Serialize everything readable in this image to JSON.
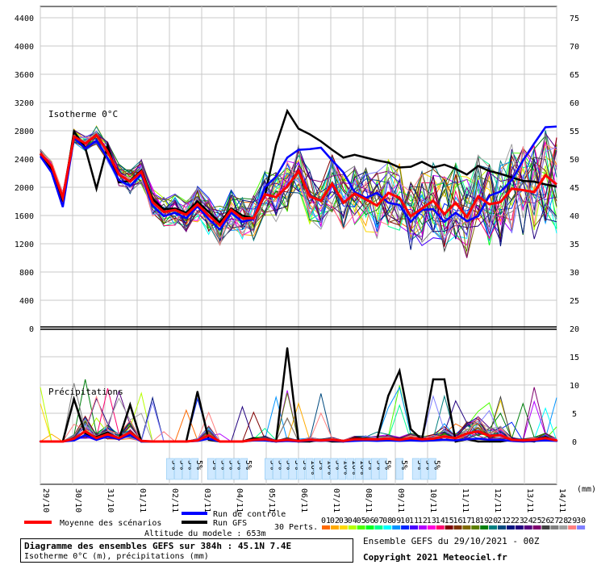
{
  "chart_data": {
    "type": "line",
    "title": "Diagramme des ensembles GEFS sur 384h : 45.1N 7.4E",
    "subtitle": "Isotherme 0°C (m), précipitations (mm)",
    "x_ticks": [
      "29/10",
      "30/10",
      "31/10",
      "01/11",
      "02/11",
      "03/11",
      "04/11",
      "05/11",
      "06/11",
      "07/11",
      "08/11",
      "09/11",
      "10/11",
      "11/11",
      "12/11",
      "13/11",
      "14/11"
    ],
    "x_unit": "(mm)",
    "left_ticks": [
      "4400",
      "4000",
      "3600",
      "3200",
      "2800",
      "2400",
      "2000",
      "1600",
      "1200",
      "800",
      "400",
      "0"
    ],
    "right_ticks": [
      "75",
      "70",
      "65",
      "60",
      "55",
      "50",
      "45",
      "40",
      "35",
      "30",
      "25",
      "20",
      "15",
      "10",
      "5",
      "0"
    ],
    "isotherm_ylim": [
      0,
      4400
    ],
    "precip_ylim": [
      0,
      20
    ],
    "isotherm_label": "Isotherme 0°C",
    "precip_label": "Précipitations",
    "snow_labels": [
      "5%",
      "5%",
      "5%",
      "5%",
      "5%",
      "5%",
      "5%",
      "5%",
      "5%",
      "5%",
      "5%",
      "5%",
      "5%",
      "5%",
      "10%",
      "5%",
      "10%",
      "5%",
      "10%",
      "10%",
      "10%",
      "5%",
      "5%",
      "5%",
      "5%",
      "5%",
      "5%",
      "5%"
    ],
    "series": [
      {
        "name": "Moyenne des scénarios",
        "color": "#ff0000",
        "isotherm": [
          2480,
          2300,
          1850,
          2720,
          2620,
          2740,
          2500,
          2180,
          2080,
          2220,
          1790,
          1650,
          1680,
          1610,
          1760,
          1600,
          1460,
          1680,
          1560,
          1560,
          1900,
          1860,
          2010,
          2230,
          1870,
          1810,
          2050,
          1780,
          1910,
          1830,
          1740,
          1920,
          1850,
          1590,
          1700,
          1810,
          1620,
          1780,
          1580,
          1870,
          1760,
          1790,
          1980,
          1960,
          1930,
          2170,
          2040
        ],
        "precip": [
          0,
          0,
          0,
          0.5,
          1.8,
          0.6,
          1.3,
          0.6,
          1.6,
          0.1,
          0,
          0,
          0,
          0,
          0.2,
          1.1,
          0,
          0,
          0,
          0.3,
          0.4,
          0.1,
          0.3,
          0.1,
          0.3,
          0.2,
          0.3,
          0.1,
          0.4,
          0.4,
          0.4,
          0.5,
          0.3,
          0.6,
          0.4,
          0.5,
          0.9,
          0.6,
          1.4,
          1.8,
          1.0,
          1.1,
          0.3,
          0.2,
          0.3,
          0.6,
          0.2
        ]
      },
      {
        "name": "Run de contrôle",
        "color": "#0000ff",
        "isotherm": [
          2440,
          2210,
          1720,
          2700,
          2550,
          2660,
          2410,
          2100,
          2020,
          2180,
          1740,
          1590,
          1640,
          1560,
          1730,
          1550,
          1400,
          1640,
          1510,
          1550,
          2000,
          2150,
          2420,
          2530,
          2540,
          2560,
          2380,
          2210,
          1930,
          1850,
          1920,
          1780,
          1750,
          1510,
          1680,
          1690,
          1510,
          1640,
          1520,
          1590,
          1880,
          1940,
          2100,
          2380,
          2620,
          2850,
          2860
        ],
        "precip": [
          0,
          0,
          0,
          0.2,
          1.1,
          0.3,
          0.9,
          0.4,
          1.2,
          0,
          0,
          0,
          0,
          0,
          0.1,
          0.5,
          0,
          0,
          0,
          0.2,
          0.2,
          0,
          0.1,
          0,
          0.2,
          0.1,
          0.2,
          0,
          0.1,
          0.2,
          0.1,
          0.2,
          0.1,
          0.2,
          0.1,
          0.2,
          0.3,
          0.2,
          0.4,
          0.5,
          0.3,
          0.3,
          0.1,
          0,
          0.1,
          0.2,
          0.1
        ]
      },
      {
        "name": "Run GFS",
        "color": "#000000",
        "isotherm": [
          2470,
          2260,
          1800,
          2790,
          2560,
          1980,
          2590,
          2070,
          2090,
          2240,
          1830,
          1690,
          1700,
          1640,
          1800,
          1650,
          1500,
          1700,
          1600,
          1560,
          1880,
          2600,
          3080,
          2830,
          2750,
          2650,
          2530,
          2420,
          2460,
          2420,
          2380,
          2350,
          2280,
          2290,
          2360,
          2280,
          2320,
          2260,
          2180,
          2300,
          2230,
          2190,
          2140,
          2090,
          2080,
          2040,
          2010
        ],
        "precip": [
          0,
          0,
          0,
          7.5,
          1.4,
          0.8,
          1.6,
          0.4,
          6.5,
          0,
          0,
          0,
          0,
          0,
          8.8,
          0.3,
          0,
          0,
          0,
          0.6,
          0.2,
          0,
          16.5,
          0,
          0,
          0.3,
          0,
          0,
          0.6,
          0.5,
          0.4,
          8.1,
          12.5,
          2.2,
          0.3,
          11.0,
          11.0,
          0,
          0.4,
          0,
          0,
          0,
          0.3,
          0.2,
          0,
          0.8,
          0.1
        ]
      }
    ],
    "perturbation_colors": [
      "#ff6a00",
      "#ffaa00",
      "#ffd800",
      "#b6ff00",
      "#4cff00",
      "#00ff21",
      "#00ff90",
      "#00ffff",
      "#0094ff",
      "#0026ff",
      "#4800ff",
      "#b200ff",
      "#ff00dc",
      "#ff006e",
      "#7f0000",
      "#7f3300",
      "#7f6a00",
      "#5b7f00",
      "#007f0e",
      "#007f7f",
      "#004a7f",
      "#00137f",
      "#21007f",
      "#57007f",
      "#7f006e",
      "#404040",
      "#808080",
      "#a0a0a0",
      "#ff7f7f",
      "#7f7fff"
    ],
    "perturbation_ids": [
      "01",
      "02",
      "03",
      "04",
      "05",
      "06",
      "07",
      "08",
      "09",
      "10",
      "11",
      "12",
      "13",
      "14",
      "15",
      "16",
      "17",
      "18",
      "19",
      "20",
      "21",
      "22",
      "23",
      "24",
      "25",
      "26",
      "27",
      "28",
      "29",
      "30"
    ]
  },
  "legend": {
    "mean": "Moyenne des scénarios",
    "control": "Run de contrôle",
    "gfs": "Run GFS",
    "perts": "30 Perts."
  },
  "footer": {
    "altitude": "Altitude du modele : 653m",
    "title": "Diagramme des ensembles GEFS sur 384h : 45.1N 7.4E",
    "subtitle": "Isotherme 0°C (m), précipitations (mm)",
    "run": "Ensemble GEFS du 29/10/2021 - 00Z",
    "copyright": "Copyright 2021 Meteociel.fr"
  }
}
